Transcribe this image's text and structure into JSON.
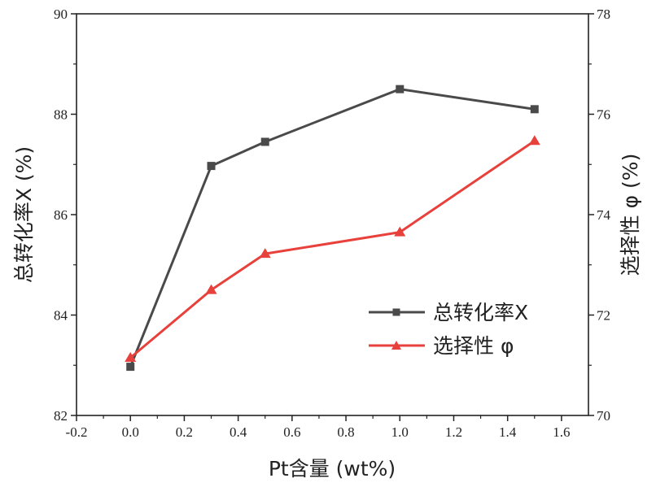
{
  "chart_data": {
    "type": "line",
    "xlabel": "Pt含量 (wt%)",
    "ylabel_left": "总转化率X (%)",
    "ylabel_right": "选择性 φ (%)",
    "xlim": [
      -0.2,
      1.7
    ],
    "xticks": [
      "-0.2",
      "0.0",
      "0.2",
      "0.4",
      "0.6",
      "0.8",
      "1.0",
      "1.2",
      "1.4",
      "1.6"
    ],
    "ylim_left": [
      82,
      90
    ],
    "yticks_left": [
      "82",
      "84",
      "86",
      "88",
      "90"
    ],
    "ylim_right": [
      70,
      78
    ],
    "yticks_right": [
      "70",
      "72",
      "74",
      "76",
      "78"
    ],
    "legend_position": "bottom-right",
    "x": [
      0.0,
      0.3,
      0.5,
      1.0,
      1.5
    ],
    "series": [
      {
        "name": "总转化率X",
        "axis": "left",
        "color": "#4a4a4a",
        "marker": "square",
        "values": [
          82.97,
          86.97,
          87.45,
          88.5,
          88.1
        ]
      },
      {
        "name": "选择性 φ",
        "axis": "right",
        "color": "#e8413c",
        "marker": "triangle",
        "values": [
          71.15,
          72.5,
          73.22,
          73.65,
          75.47
        ]
      }
    ]
  }
}
